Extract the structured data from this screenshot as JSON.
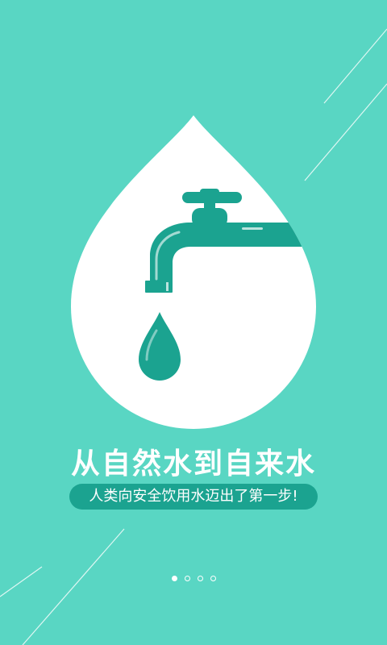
{
  "onboarding": {
    "headline": "从自然水到自来水",
    "subtitle": "人类向安全饮用水迈出了第一步!",
    "pager": {
      "total": 4,
      "active_index": 0
    }
  },
  "icons": {
    "illustration": "faucet-in-water-drop-icon",
    "drop": "water-drop-icon"
  },
  "colors": {
    "background": "#59d6c3",
    "drop": "#ffffff",
    "faucet": "#1ba390",
    "pill": "#1ba390",
    "text": "#ffffff"
  }
}
